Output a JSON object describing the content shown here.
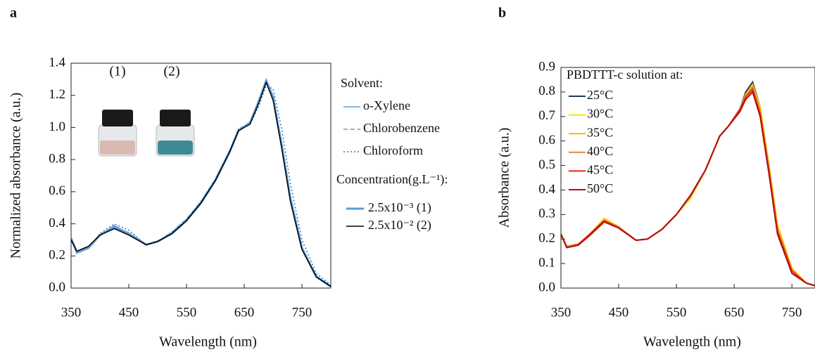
{
  "chart_data": [
    {
      "type": "line",
      "panel": "a",
      "ylabel": "Normalized absorbance (a.u.)",
      "xlabel": "Wavelength (nm)",
      "annotations": [
        "(1)",
        "(2)"
      ],
      "xlim": [
        350,
        800
      ],
      "ylim": [
        0,
        1.4
      ],
      "xticks": [
        350,
        450,
        550,
        650,
        750
      ],
      "yticks": [
        {
          "value": 0,
          "label": "0.0"
        },
        0.2,
        0.4,
        0.6,
        0.8,
        {
          "value": 1,
          "label": "1.0"
        },
        1.2,
        1.4
      ],
      "x": [
        350,
        360,
        380,
        400,
        425,
        450,
        480,
        500,
        525,
        550,
        575,
        600,
        625,
        640,
        660,
        675,
        688,
        700,
        715,
        730,
        750,
        775,
        800
      ],
      "series_groups": [
        {
          "title": "Solvent:",
          "series": [
            {
              "name": "o-Xylene",
              "color": "#5b9bd5",
              "dash": "solid",
              "linewidth": 1.5,
              "values": [
                0.31,
                0.23,
                0.25,
                0.33,
                0.39,
                0.34,
                0.27,
                0.29,
                0.34,
                0.42,
                0.53,
                0.67,
                0.85,
                0.98,
                1.03,
                1.16,
                1.3,
                1.18,
                0.88,
                0.55,
                0.25,
                0.07,
                0.01
              ]
            },
            {
              "name": "Chlorobenzene",
              "color": "#5b9bd5",
              "dash": "dashed",
              "linewidth": 1.5,
              "values": [
                0.31,
                0.22,
                0.25,
                0.33,
                0.38,
                0.34,
                0.27,
                0.29,
                0.35,
                0.43,
                0.54,
                0.68,
                0.86,
                0.99,
                1.03,
                1.17,
                1.3,
                1.19,
                0.89,
                0.56,
                0.25,
                0.07,
                0.01
              ]
            },
            {
              "name": "Chloroform",
              "color": "#2e75b6",
              "dash": "dotted",
              "linewidth": 1.5,
              "values": [
                0.3,
                0.22,
                0.25,
                0.34,
                0.4,
                0.36,
                0.27,
                0.29,
                0.35,
                0.43,
                0.54,
                0.68,
                0.86,
                0.99,
                1.02,
                1.13,
                1.26,
                1.24,
                0.99,
                0.65,
                0.3,
                0.09,
                0.02
              ]
            }
          ]
        },
        {
          "title": "Concentration(g.L⁻¹):",
          "series": [
            {
              "name": "2.5x10⁻³ (1)",
              "color": "#5b9bd5",
              "dash": "solid",
              "linewidth": 3,
              "values": [
                0.31,
                0.22,
                0.25,
                0.33,
                0.38,
                0.34,
                0.27,
                0.29,
                0.34,
                0.42,
                0.53,
                0.67,
                0.85,
                0.98,
                1.03,
                1.16,
                1.29,
                1.19,
                0.89,
                0.56,
                0.25,
                0.07,
                0.01
              ]
            },
            {
              "name": "2.5x10⁻² (2)",
              "color": "#000000",
              "dash": "solid",
              "linewidth": 1.5,
              "values": [
                0.3,
                0.23,
                0.26,
                0.33,
                0.37,
                0.33,
                0.27,
                0.29,
                0.34,
                0.42,
                0.53,
                0.67,
                0.85,
                0.98,
                1.02,
                1.15,
                1.28,
                1.17,
                0.87,
                0.54,
                0.24,
                0.07,
                0.01
              ]
            }
          ]
        }
      ]
    },
    {
      "type": "line",
      "panel": "b",
      "ylabel": "Absorbance (a.u.)",
      "xlabel": "Wavelength (nm)",
      "xlim": [
        350,
        790
      ],
      "ylim": [
        0,
        0.9
      ],
      "xticks": [
        350,
        450,
        550,
        650,
        750
      ],
      "yticks": [
        {
          "value": 0,
          "label": "0.0"
        },
        0.1,
        0.2,
        0.3,
        0.4,
        0.5,
        0.6,
        0.7,
        0.8,
        0.9
      ],
      "x": [
        350,
        360,
        380,
        400,
        425,
        450,
        480,
        500,
        525,
        550,
        575,
        600,
        625,
        640,
        660,
        670,
        682,
        695,
        710,
        725,
        750,
        775,
        790
      ],
      "series_groups": [
        {
          "title": "PBDTTT-c solution at:",
          "series": [
            {
              "name": "25°C",
              "color": "#1f3b5a",
              "dash": "solid",
              "linewidth": 2,
              "values": [
                0.22,
                0.17,
                0.18,
                0.22,
                0.28,
                0.25,
                0.195,
                0.2,
                0.24,
                0.3,
                0.38,
                0.48,
                0.62,
                0.66,
                0.73,
                0.8,
                0.84,
                0.74,
                0.5,
                0.25,
                0.07,
                0.02,
                0.01
              ]
            },
            {
              "name": "30°C",
              "color": "#f2e600",
              "dash": "solid",
              "linewidth": 2,
              "values": [
                0.22,
                0.17,
                0.18,
                0.22,
                0.285,
                0.25,
                0.195,
                0.2,
                0.24,
                0.3,
                0.37,
                0.48,
                0.62,
                0.66,
                0.73,
                0.79,
                0.83,
                0.74,
                0.51,
                0.26,
                0.08,
                0.02,
                0.01
              ]
            },
            {
              "name": "35°C",
              "color": "#f5b800",
              "dash": "solid",
              "linewidth": 2,
              "values": [
                0.22,
                0.17,
                0.18,
                0.22,
                0.28,
                0.25,
                0.195,
                0.2,
                0.24,
                0.3,
                0.37,
                0.48,
                0.62,
                0.66,
                0.73,
                0.79,
                0.825,
                0.73,
                0.5,
                0.25,
                0.08,
                0.02,
                0.01
              ]
            },
            {
              "name": "40°C",
              "color": "#f07f3c",
              "dash": "solid",
              "linewidth": 2,
              "values": [
                0.22,
                0.17,
                0.18,
                0.22,
                0.275,
                0.25,
                0.195,
                0.2,
                0.24,
                0.3,
                0.38,
                0.48,
                0.62,
                0.66,
                0.73,
                0.78,
                0.82,
                0.72,
                0.49,
                0.24,
                0.07,
                0.02,
                0.01
              ]
            },
            {
              "name": "45°C",
              "color": "#e8281e",
              "dash": "solid",
              "linewidth": 2,
              "values": [
                0.22,
                0.165,
                0.175,
                0.22,
                0.275,
                0.245,
                0.195,
                0.2,
                0.24,
                0.3,
                0.38,
                0.48,
                0.62,
                0.66,
                0.73,
                0.78,
                0.81,
                0.71,
                0.48,
                0.23,
                0.07,
                0.02,
                0.01
              ]
            },
            {
              "name": "50°C",
              "color": "#b01010",
              "dash": "solid",
              "linewidth": 2,
              "values": [
                0.22,
                0.165,
                0.175,
                0.215,
                0.27,
                0.245,
                0.195,
                0.2,
                0.24,
                0.3,
                0.38,
                0.48,
                0.62,
                0.66,
                0.72,
                0.77,
                0.8,
                0.7,
                0.47,
                0.22,
                0.06,
                0.02,
                0.01
              ]
            }
          ]
        }
      ]
    }
  ]
}
